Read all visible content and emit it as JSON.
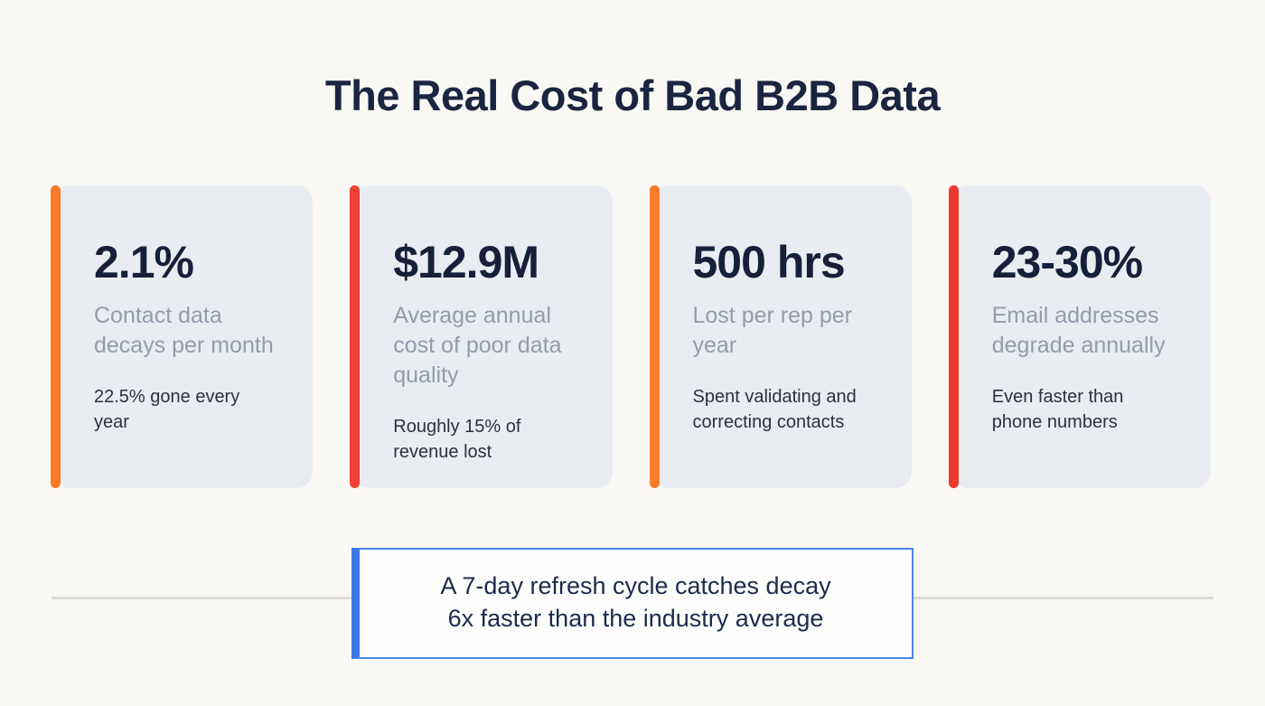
{
  "title": "The Real Cost of Bad B2B Data",
  "cards": [
    {
      "stat": "2.1%",
      "subtitle": "Contact data decays per month",
      "description": "22.5% gone every year",
      "accent_color": "#f87b2b"
    },
    {
      "stat": "$12.9M",
      "subtitle": "Average annual cost of poor data quality",
      "description": "Roughly 15% of revenue lost",
      "accent_color": "#ef4136"
    },
    {
      "stat": "500 hrs",
      "subtitle": "Lost per rep per year",
      "description": "Spent validating and correcting contacts",
      "accent_color": "#f97c2d"
    },
    {
      "stat": "23-30%",
      "subtitle": "Email addresses degrade annually",
      "description": "Even faster than phone numbers",
      "accent_color": "#ee3a2e"
    }
  ],
  "callout": {
    "line1": "A 7-day refresh cycle catches decay",
    "line2": "6x faster than the industry average"
  },
  "colors": {
    "page_background": "#faf8f5",
    "card_background": "#e9edf2",
    "title_text": "#1b2440",
    "stat_text": "#17203a",
    "subtitle_text": "#929daa",
    "description_text": "#2a323e",
    "callout_border": "#4a86e8",
    "callout_accent": "#3a77e3",
    "divider": "#dddbd7"
  }
}
